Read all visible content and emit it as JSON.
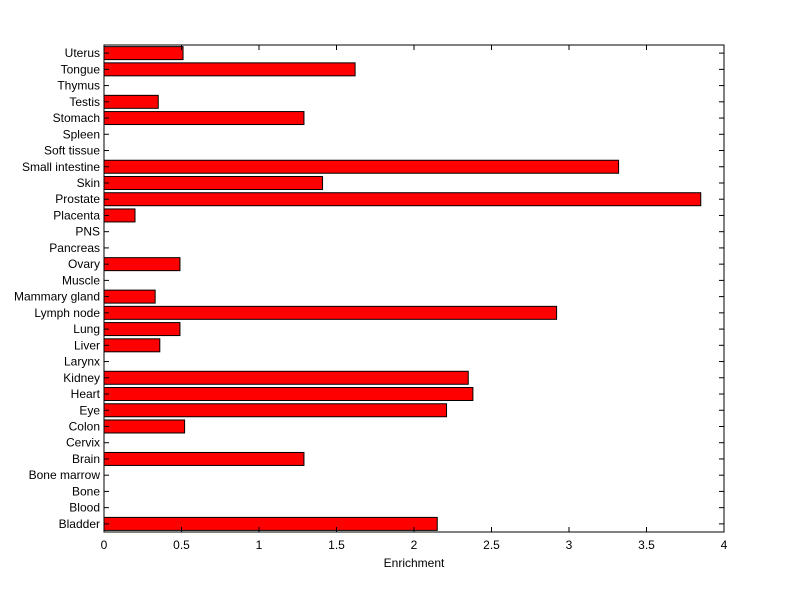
{
  "chart_data": {
    "type": "bar",
    "orientation": "horizontal",
    "title": "",
    "xlabel": "Enrichment",
    "ylabel": "",
    "xlim": [
      0,
      4
    ],
    "x_ticks": [
      0,
      0.5,
      1,
      1.5,
      2,
      2.5,
      3,
      3.5,
      4
    ],
    "x_tick_labels": [
      "0",
      "0.5",
      "1",
      "1.5",
      "2",
      "2.5",
      "3",
      "3.5",
      "4"
    ],
    "grid": false,
    "legend": "none",
    "bar_color": "#ff0000",
    "categories": [
      "Bladder",
      "Blood",
      "Bone",
      "Bone marrow",
      "Brain",
      "Cervix",
      "Colon",
      "Eye",
      "Heart",
      "Kidney",
      "Larynx",
      "Liver",
      "Lung",
      "Lymph node",
      "Mammary gland",
      "Muscle",
      "Ovary",
      "Pancreas",
      "PNS",
      "Placenta",
      "Prostate",
      "Skin",
      "Small intestine",
      "Soft tissue",
      "Spleen",
      "Stomach",
      "Testis",
      "Thymus",
      "Tongue",
      "Uterus"
    ],
    "values": [
      2.15,
      0,
      0,
      0,
      1.29,
      0,
      0.52,
      2.21,
      2.38,
      2.35,
      0,
      0.36,
      0.49,
      2.92,
      0.33,
      0,
      0.49,
      0,
      0,
      0.2,
      3.85,
      1.41,
      3.32,
      0,
      0,
      1.29,
      0.35,
      0,
      1.62,
      0.51
    ]
  }
}
